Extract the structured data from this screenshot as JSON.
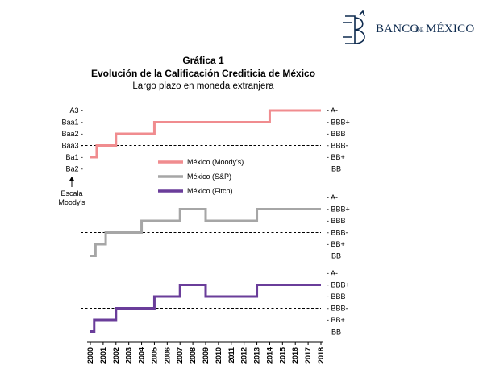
{
  "header": {
    "brand_text": "BANCO DE MÉXICO",
    "brand_part1": "BANCO",
    "brand_part2": "DE",
    "brand_part3": "MÉXICO"
  },
  "chart_data": {
    "type": "line",
    "title": "Gráfica 1",
    "subtitle": "Evolución de la Calificación Crediticia de México",
    "subtitle2": "Largo plazo en moneda extranjera",
    "x": [
      "2000",
      "2001",
      "2002",
      "2003",
      "2004",
      "2005",
      "2006",
      "2007",
      "2008",
      "2009",
      "2010",
      "2011",
      "2012",
      "2013",
      "2014",
      "2015",
      "2016",
      "2017",
      "2018"
    ],
    "left_scale_label": "Escala Moody's",
    "left_ticks": [
      "A3",
      "Baa1",
      "Baa2",
      "Baa3",
      "Ba1",
      "Ba2"
    ],
    "right_ticks": [
      "A-",
      "BBB+",
      "BBB",
      "BBB-",
      "BB+",
      "BB"
    ],
    "investment_grade_threshold": "BBB-",
    "grid": false,
    "legend_position": "middle-left",
    "series": [
      {
        "name": "México (Moody's)",
        "color": "#f08c8f",
        "steps": [
          {
            "from": 2000.0,
            "rating": "BB+"
          },
          {
            "from": 2000.5,
            "rating": "BBB-"
          },
          {
            "from": 2002.0,
            "rating": "BBB"
          },
          {
            "from": 2005.0,
            "rating": "BBB+"
          },
          {
            "from": 2014.0,
            "rating": "A-"
          }
        ],
        "end": 2018.0
      },
      {
        "name": "México (S&P)",
        "color": "#a6a6a6",
        "steps": [
          {
            "from": 2000.0,
            "rating": "BB"
          },
          {
            "from": 2000.4,
            "rating": "BB+"
          },
          {
            "from": 2001.2,
            "rating": "BBB-"
          },
          {
            "from": 2004.0,
            "rating": "BBB"
          },
          {
            "from": 2007.0,
            "rating": "BBB+"
          },
          {
            "from": 2009.0,
            "rating": "BBB"
          },
          {
            "from": 2013.0,
            "rating": "BBB+"
          }
        ],
        "end": 2018.0
      },
      {
        "name": "México (Fitch)",
        "color": "#6a3d9a",
        "steps": [
          {
            "from": 2000.0,
            "rating": "BB"
          },
          {
            "from": 2000.3,
            "rating": "BB+"
          },
          {
            "from": 2002.0,
            "rating": "BBB-"
          },
          {
            "from": 2005.0,
            "rating": "BBB"
          },
          {
            "from": 2007.0,
            "rating": "BBB+"
          },
          {
            "from": 2009.0,
            "rating": "BBB"
          },
          {
            "from": 2013.0,
            "rating": "BBB+"
          }
        ],
        "end": 2018.0
      }
    ]
  }
}
